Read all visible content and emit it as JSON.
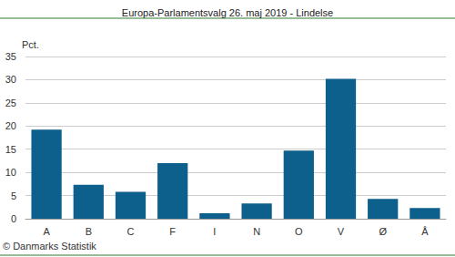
{
  "chart_data": {
    "type": "bar",
    "title": "Europa-Parlamentsvalg 26. maj 2019 - Lindelse",
    "ylabel": "Pct.",
    "annotation": "© Danmarks Statistik",
    "categories": [
      "A",
      "B",
      "C",
      "F",
      "I",
      "N",
      "O",
      "V",
      "Ø",
      "Å"
    ],
    "values": [
      19.2,
      7.3,
      5.8,
      12.0,
      1.2,
      3.3,
      14.7,
      30.2,
      4.3,
      2.3
    ],
    "color": "#0d5f8c",
    "ylim": [
      0,
      35
    ],
    "yticks": [
      0,
      5,
      10,
      15,
      20,
      25,
      30,
      35
    ],
    "grid": true
  }
}
